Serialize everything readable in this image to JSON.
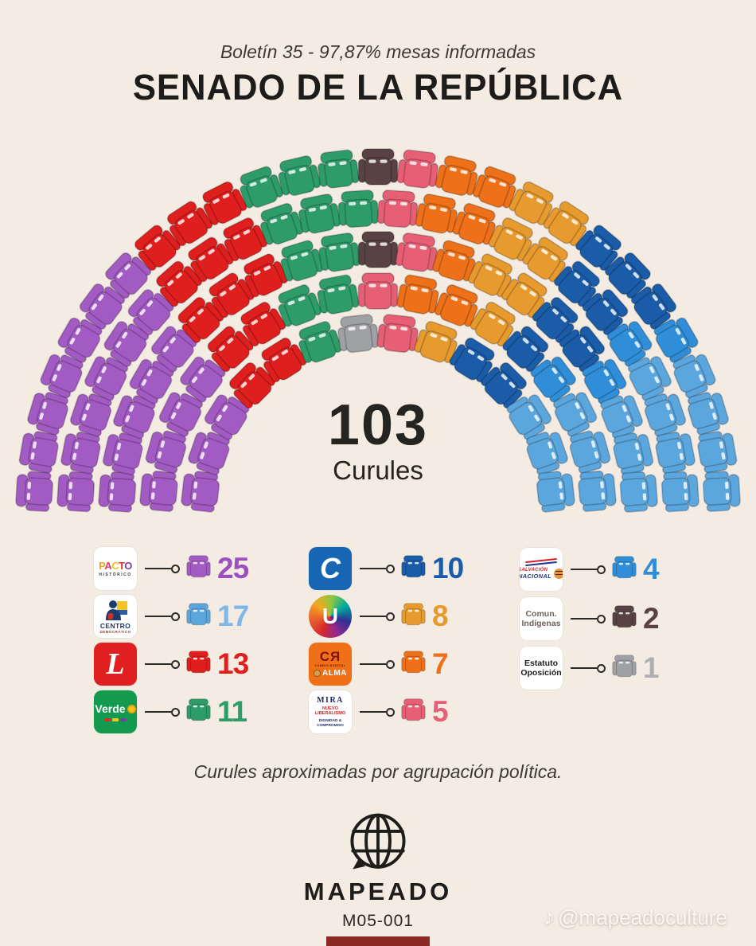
{
  "page": {
    "background": "#F4ECE2"
  },
  "header": {
    "subtitle": "Boletín 35 - 97,87% mesas informadas",
    "title": "SENADO DE LA REPÚBLICA"
  },
  "chart_data": {
    "type": "parliament",
    "title": "SENADO DE LA REPÚBLICA",
    "total_seats": 103,
    "total_label": {
      "value": "103",
      "label": "Curules"
    },
    "rows": [
      14,
      17,
      21,
      24,
      27
    ],
    "note": "seats arranged in 5 concentric arcs, parties ordered left to right",
    "parties": [
      {
        "name": "Pacto Histórico",
        "seats": 25,
        "color": "#A35BC4"
      },
      {
        "name": "Partido Liberal",
        "seats": 13,
        "color": "#DF1E1E"
      },
      {
        "name": "Alianza Verde",
        "seats": 11,
        "color": "#2E9C69"
      },
      {
        "name": "Estatuto Oposición",
        "seats": 1,
        "color": "#9FA1A4"
      },
      {
        "name": "Comun. Indígenas",
        "seats": 2,
        "color": "#584243"
      },
      {
        "name": "MIRA - Nuevo Liberalismo",
        "seats": 5,
        "color": "#E75F75"
      },
      {
        "name": "Cambio Radical",
        "seats": 7,
        "color": "#EE7018"
      },
      {
        "name": "Partido de la U",
        "seats": 8,
        "color": "#E79A2D"
      },
      {
        "name": "Partido Conservador",
        "seats": 10,
        "color": "#1A5CA8"
      },
      {
        "name": "Salvación Nacional",
        "seats": 4,
        "color": "#2F8ED7"
      },
      {
        "name": "Centro Democrático",
        "seats": 17,
        "color": "#5CA6DE"
      }
    ]
  },
  "legend": {
    "columns": [
      [
        {
          "id": "pacto",
          "logo_type": "pacto",
          "value": "25",
          "color": "#A35BC4",
          "num_color": "#9C4FC0",
          "logo": {
            "word": "PACTO",
            "letters": [
              {
                "ch": "P",
                "color": "#F0A41C"
              },
              {
                "ch": "A",
                "color": "#E23B5F"
              },
              {
                "ch": "C",
                "color": "#F2C014"
              },
              {
                "ch": "T",
                "color": "#D9352B"
              },
              {
                "ch": "O",
                "color": "#7B3FA0"
              }
            ],
            "sub": "HISTÓRICO"
          }
        },
        {
          "id": "centro-democratico",
          "logo_type": "cd",
          "value": "17",
          "color": "#5CA6DE",
          "num_color": "#7FB8E8",
          "logo": {
            "line1": "CENTRO",
            "line2": "DEMOCRÁTICO",
            "figure_color": "#1B3C6E",
            "patch_yellow": "#F5C31D",
            "patch_red": "#CC3327",
            "patch_blue": "#2E5FA3"
          }
        },
        {
          "id": "liberal",
          "logo_type": "liberal",
          "value": "13",
          "color": "#DF1E1E",
          "num_color": "#DF1E1E",
          "logo": {
            "letter": "L",
            "bg": "#E02020"
          }
        },
        {
          "id": "verde",
          "logo_type": "verde",
          "value": "11",
          "color": "#2E9C69",
          "num_color": "#2E9C69",
          "logo": {
            "word": "Verde",
            "bg": "#129A4E",
            "strip_colors": [
              "#D93025",
              "#F5C515",
              "#7B3FA0"
            ]
          }
        }
      ],
      [
        {
          "id": "conservador",
          "logo_type": "conservador",
          "value": "10",
          "color": "#1A5CA8",
          "num_color": "#1A5CA8",
          "logo": {
            "letter": "C",
            "bg": "#1766B4"
          }
        },
        {
          "id": "partido-u",
          "logo_type": "u",
          "value": "8",
          "color": "#E79A2D",
          "num_color": "#E79A2D",
          "logo": {
            "letter": "U"
          }
        },
        {
          "id": "cambio-radical",
          "logo_type": "cr",
          "value": "7",
          "color": "#EE7018",
          "num_color": "#EE7018",
          "logo": {
            "line1": "CЯ",
            "line2": "CAMBIO RADICAL",
            "line3": "ALMA",
            "bg": "#F07018"
          }
        },
        {
          "id": "mira-nuevo-liberalismo",
          "logo_type": "mira",
          "value": "5",
          "color": "#E75F75",
          "num_color": "#E75F75",
          "logo": {
            "line1": "MIRA",
            "line2a": "NUEVO",
            "line2b": "LIBERALISMO",
            "line3a": "DIGNIDAD &",
            "line3b": "COMPROMISO"
          }
        }
      ],
      [
        {
          "id": "salvacion-nacional",
          "logo_type": "nacional",
          "value": "4",
          "color": "#2F8ED7",
          "num_color": "#2F8ED7",
          "logo": {
            "line1": "SALVACIÓN",
            "line2": "NACIONAL",
            "swoosh_red": "#D42027",
            "swoosh_blue": "#1B3C8C"
          }
        },
        {
          "id": "comunidades-indigenas",
          "logo_type": "text2",
          "value": "2",
          "color": "#584243",
          "num_color": "#584243",
          "logo": {
            "lines": [
              "Comun.",
              "Indígenas"
            ],
            "text_color": "#6E625C"
          }
        },
        {
          "id": "estatuto-oposicion",
          "logo_type": "text2",
          "value": "1",
          "color": "#9FA1A4",
          "num_color": "#ADAFB2",
          "logo": {
            "lines": [
              "Estatuto",
              "Oposición"
            ],
            "text_color": "#1E1D1B"
          }
        }
      ]
    ]
  },
  "footer": {
    "note": "Curules aproximadas por agrupación política.",
    "brand": "MAPEADO",
    "code": "M05-001",
    "bar_color": "#8B2A24",
    "watermark": "@mapeadoculture",
    "watermark_icon": "tiktok-note"
  }
}
